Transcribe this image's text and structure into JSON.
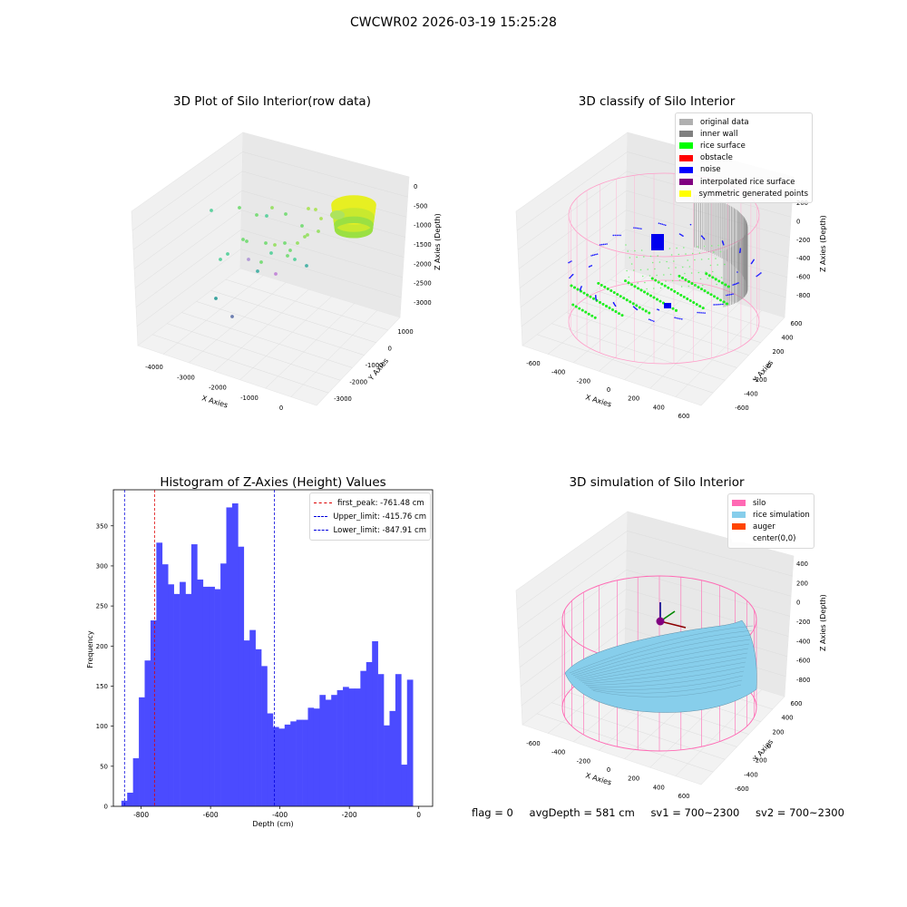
{
  "suptitle": "CWCWR02 2026-03-19 15:25:28",
  "colors": {
    "hist_bar": "#4b4bff",
    "first_peak_line": "#dd0000",
    "limit_line": "#0000dd",
    "silo": "#ff69b4",
    "rice": "#87ceeb",
    "auger": "#ff4500"
  },
  "panels": {
    "raw": {
      "title": "3D Plot of Silo Interior(row data)",
      "xlabel": "X Axies",
      "ylabel": "Y Axies",
      "zlabel": "Z Axies (Depth)",
      "xticks": [
        "-4000",
        "-3000",
        "-2000",
        "-1000",
        "0"
      ],
      "yticks": [
        "1000",
        "0",
        "-1000",
        "-2000",
        "-3000"
      ],
      "zticks": [
        "0",
        "-500",
        "-1000",
        "-1500",
        "-2000",
        "-2500",
        "-3000"
      ]
    },
    "classify": {
      "title": "3D classify of Silo Interior",
      "xlabel": "X Axies",
      "ylabel": "Y Axies",
      "zlabel": "Z Axies (Depth)",
      "xticks": [
        "-600",
        "-400",
        "-200",
        "0",
        "200",
        "400",
        "600"
      ],
      "yticks": [
        "600",
        "400",
        "200",
        "0",
        "-200",
        "-400",
        "-600"
      ],
      "zticks": [
        "200",
        "0",
        "-200",
        "-400",
        "-600",
        "-800"
      ],
      "legend": [
        {
          "label": "original data",
          "color": "#b0b0b0"
        },
        {
          "label": "inner wall",
          "color": "#808080"
        },
        {
          "label": "rice surface",
          "color": "#00ff00"
        },
        {
          "label": "obstacle",
          "color": "#ff0000"
        },
        {
          "label": "noise",
          "color": "#0000ff"
        },
        {
          "label": "interpolated rice surface",
          "color": "#800080"
        },
        {
          "label": "symmetric generated points",
          "color": "#ffff00"
        }
      ]
    },
    "simulation": {
      "title": "3D simulation of Silo Interior",
      "xlabel": "X Axies",
      "ylabel": "Y Axies",
      "zlabel": "Z Axies (Depth)",
      "xticks": [
        "-600",
        "-400",
        "-200",
        "0",
        "200",
        "400",
        "600"
      ],
      "yticks": [
        "600",
        "400",
        "200",
        "0",
        "-200",
        "-400",
        "-600"
      ],
      "zticks": [
        "400",
        "200",
        "0",
        "-200",
        "-400",
        "-600",
        "-800"
      ],
      "legend": [
        {
          "label": "silo",
          "color": "#ff69b4"
        },
        {
          "label": "rice simulation",
          "color": "#87ceeb"
        },
        {
          "label": "auger",
          "color": "#ff4500"
        },
        {
          "label": "center(0,0)",
          "color": "#ffffff"
        }
      ]
    }
  },
  "footer": {
    "flag": "flag = 0",
    "avg": "avgDepth = 581 cm",
    "sv1": "sv1 = 700~2300",
    "sv2": "sv2 = 700~2300"
  },
  "chart_data": [
    {
      "type": "bar",
      "title": "Histogram of Z-Axies (Height) Values",
      "xlabel": "Depth (cm)",
      "ylabel": "Frequency",
      "xlim": [
        -880,
        40
      ],
      "ylim": [
        0,
        395
      ],
      "xticks": [
        -800,
        -600,
        -400,
        -200,
        0
      ],
      "yticks": [
        0,
        50,
        100,
        150,
        200,
        250,
        300,
        350
      ],
      "bin_width": 16.8,
      "bin_start": -857,
      "values": [
        7,
        17,
        60,
        136,
        182,
        232,
        329,
        302,
        277,
        265,
        280,
        265,
        327,
        283,
        274,
        274,
        271,
        303,
        373,
        378,
        324,
        207,
        220,
        196,
        175,
        116,
        99,
        97,
        102,
        106,
        108,
        108,
        123,
        122,
        139,
        133,
        139,
        145,
        149,
        147,
        147,
        169,
        180,
        206,
        165,
        101,
        119,
        165,
        52,
        158
      ],
      "lines": [
        {
          "label": "first_peak: -761.48 cm",
          "x": -761.48,
          "color": "red"
        },
        {
          "label": "Upper_limit: -415.76 cm",
          "x": -415.76,
          "color": "blue"
        },
        {
          "label": "Lower_limit: -847.91 cm",
          "x": -847.91,
          "color": "blue"
        }
      ],
      "legend_position": "top-right"
    }
  ]
}
